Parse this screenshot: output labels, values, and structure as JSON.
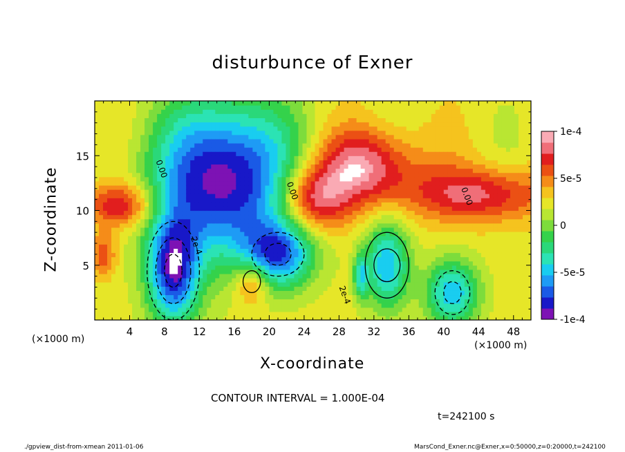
{
  "chart_data": {
    "type": "heatmap",
    "title": "disturbunce of Exner",
    "xlabel": "X-coordinate",
    "ylabel": "Z-coordinate",
    "x_unit_left": "(×1000 m)",
    "x_unit_right": "(×1000 m)",
    "xlim": [
      0,
      50
    ],
    "ylim": [
      0,
      20
    ],
    "x_ticks": [
      4,
      8,
      12,
      16,
      20,
      24,
      28,
      32,
      36,
      40,
      44,
      48
    ],
    "y_ticks": [
      5,
      10,
      15
    ],
    "colorbar": {
      "range": [
        -0.0001,
        0.0001
      ],
      "tick_values": [
        0.0001,
        5e-05,
        0,
        -5e-05,
        -0.0001
      ],
      "tick_labels": [
        "1e-4",
        "5e-5",
        "0",
        "-5e-5",
        "-1e-4"
      ],
      "colors": [
        "#7d12b4",
        "#1818c8",
        "#1a5ae6",
        "#1e9bf5",
        "#19cdf0",
        "#2be3b4",
        "#2ad87a",
        "#34d24b",
        "#7ddc3c",
        "#b9e632",
        "#e6e628",
        "#f5c31e",
        "#f58c19",
        "#eb5014",
        "#e11e1e",
        "#f06e78",
        "#faaab4"
      ]
    },
    "contour_interval": "CONTOUR INTERVAL = 1.000E-04",
    "contour_labels": [
      "0.00",
      "0.00",
      "0.00",
      "2e-4",
      "2e-4"
    ],
    "time_label": "t=242100 s",
    "footer_left": "./gpview_dist-from-xmean  2011-01-06",
    "footer_right": "MarsCond_Exner.nc@Exner,x=0:50000,z=0:20000,t=242100",
    "field_features": [
      {
        "kind": "negative",
        "x": 15,
        "z": 13,
        "rx": 8,
        "rz": 7,
        "amp": -1.3
      },
      {
        "kind": "positive",
        "x": 31,
        "z": 14,
        "rx": 6,
        "rz": 3.5,
        "amp": 0.7
      },
      {
        "kind": "positive",
        "x": 44,
        "z": 11.5,
        "rx": 8,
        "rz": 2.5,
        "amp": 0.6
      },
      {
        "kind": "positive",
        "x": 3,
        "z": 10.5,
        "rx": 4,
        "rz": 2,
        "amp": 0.6
      },
      {
        "kind": "positive",
        "x": 25,
        "z": 11,
        "rx": 4,
        "rz": 3,
        "amp": 0.7
      }
    ]
  }
}
